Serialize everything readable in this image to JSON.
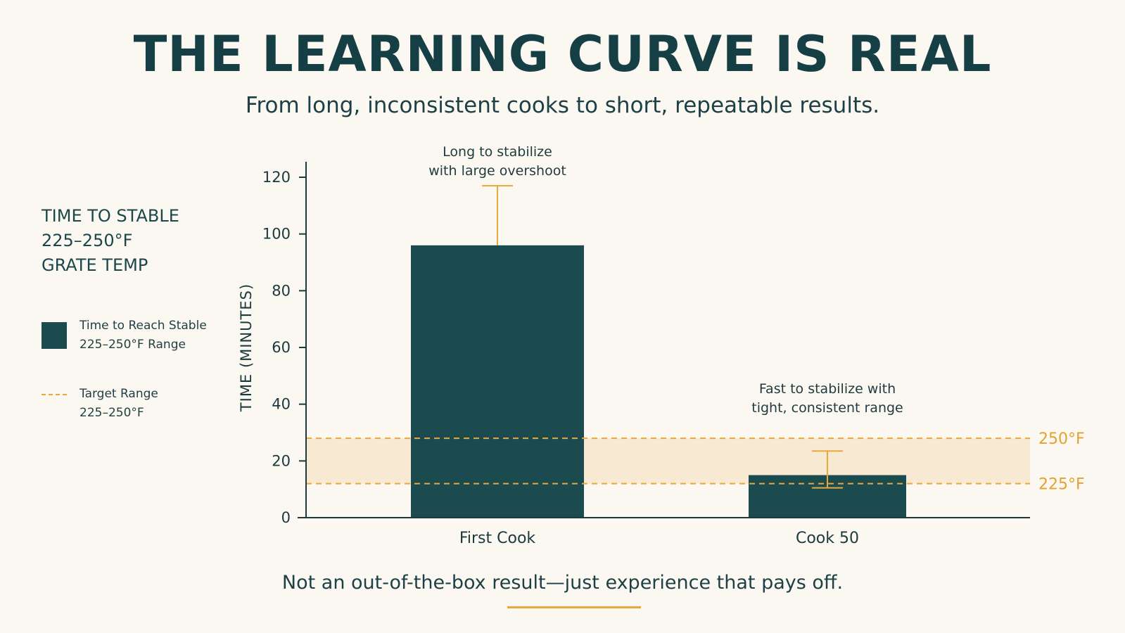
{
  "header": {
    "title": "THE LEARNING CURVE IS REAL",
    "subtitle": "From long, inconsistent cooks to short, repeatable results."
  },
  "sidebar": {
    "heading_lines": [
      "TIME TO STABLE",
      "225–250°F",
      "GRATE TEMP"
    ],
    "legend": [
      {
        "lines": [
          "Time to Reach Stable",
          "225–250°F Range"
        ],
        "icon": "filled-square"
      },
      {
        "lines": [
          "Target Range",
          "225–250°F"
        ],
        "icon": "dashed-line"
      }
    ]
  },
  "footer": {
    "text": "Not an out-of-the-box result—just experience that pays off."
  },
  "colors": {
    "bar": "#1b4a4f",
    "accent": "#e8a93a",
    "band": "#f8ead2",
    "background": "#fbf8f1",
    "text": "#163f45"
  },
  "chart_data": {
    "type": "bar",
    "ylabel": "TIME (MINUTES)",
    "ylim": [
      0,
      120
    ],
    "yticks": [
      0,
      20,
      40,
      60,
      80,
      100,
      120
    ],
    "categories": [
      "First Cook",
      "Cook 50"
    ],
    "values": [
      96,
      15
    ],
    "error_upper": [
      117,
      23.5
    ],
    "error_lower": [
      96,
      10.5
    ],
    "annotations": [
      {
        "category": "First Cook",
        "lines": [
          "Long to stabilize",
          "with large overshoot"
        ]
      },
      {
        "category": "Cook 50",
        "lines": [
          "Fast to stabilize with",
          "tight, consistent range"
        ]
      }
    ],
    "reference_band": {
      "low": 12,
      "high": 28
    },
    "reference_lines": [
      {
        "label": "250°F",
        "value": 28
      },
      {
        "label": "225°F",
        "value": 12
      }
    ],
    "grid": false
  }
}
